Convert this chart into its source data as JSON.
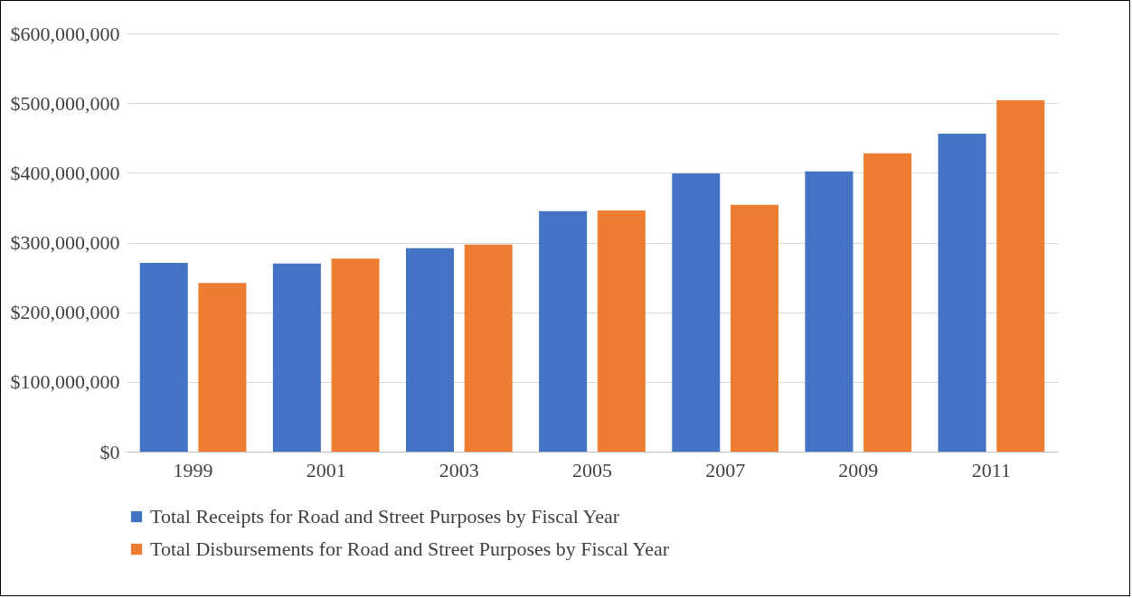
{
  "chart_data": {
    "type": "bar",
    "categories": [
      "1999",
      "2001",
      "2003",
      "2005",
      "2007",
      "2009",
      "2011"
    ],
    "series": [
      {
        "name": "Total Receipts for Road and Street Purposes by Fiscal Year",
        "color": "#4472c4",
        "values": [
          271000000,
          270000000,
          292000000,
          345000000,
          399000000,
          402000000,
          456000000
        ]
      },
      {
        "name": "Total Disbursements for Road and Street Purposes by Fiscal Year",
        "color": "#ed7d31",
        "values": [
          242000000,
          277000000,
          297000000,
          346000000,
          354000000,
          428000000,
          504000000
        ]
      }
    ],
    "ylim": [
      0,
      600000000
    ],
    "yticks": [
      {
        "value": 0,
        "label": "$0"
      },
      {
        "value": 100000000,
        "label": "$100,000,000"
      },
      {
        "value": 200000000,
        "label": "$200,000,000"
      },
      {
        "value": 300000000,
        "label": "$300,000,000"
      },
      {
        "value": 400000000,
        "label": "$400,000,000"
      },
      {
        "value": 500000000,
        "label": "$500,000,000"
      },
      {
        "value": 600000000,
        "label": "$600,000,000"
      }
    ],
    "grid": "y",
    "legend": "bottom"
  }
}
